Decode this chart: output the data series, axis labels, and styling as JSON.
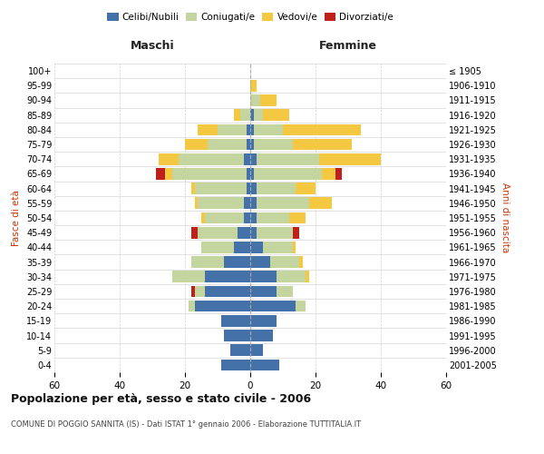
{
  "age_groups": [
    "0-4",
    "5-9",
    "10-14",
    "15-19",
    "20-24",
    "25-29",
    "30-34",
    "35-39",
    "40-44",
    "45-49",
    "50-54",
    "55-59",
    "60-64",
    "65-69",
    "70-74",
    "75-79",
    "80-84",
    "85-89",
    "90-94",
    "95-99",
    "100+"
  ],
  "birth_years": [
    "2001-2005",
    "1996-2000",
    "1991-1995",
    "1986-1990",
    "1981-1985",
    "1976-1980",
    "1971-1975",
    "1966-1970",
    "1961-1965",
    "1956-1960",
    "1951-1955",
    "1946-1950",
    "1941-1945",
    "1936-1940",
    "1931-1935",
    "1926-1930",
    "1921-1925",
    "1916-1920",
    "1911-1915",
    "1906-1910",
    "≤ 1905"
  ],
  "males": {
    "celibi": [
      9,
      6,
      8,
      9,
      17,
      14,
      14,
      8,
      5,
      4,
      2,
      2,
      1,
      1,
      2,
      1,
      1,
      0,
      0,
      0,
      0
    ],
    "coniugati": [
      0,
      0,
      0,
      0,
      2,
      3,
      10,
      10,
      10,
      12,
      12,
      14,
      16,
      23,
      20,
      12,
      9,
      3,
      0,
      0,
      0
    ],
    "vedovi": [
      0,
      0,
      0,
      0,
      0,
      0,
      0,
      0,
      0,
      0,
      1,
      1,
      1,
      2,
      6,
      7,
      6,
      2,
      0,
      0,
      0
    ],
    "divorziati": [
      0,
      0,
      0,
      0,
      0,
      1,
      0,
      0,
      0,
      2,
      0,
      0,
      0,
      3,
      0,
      0,
      0,
      0,
      0,
      0,
      0
    ]
  },
  "females": {
    "nubili": [
      9,
      4,
      7,
      8,
      14,
      8,
      8,
      6,
      4,
      2,
      2,
      2,
      2,
      1,
      2,
      1,
      1,
      1,
      0,
      0,
      0
    ],
    "coniugate": [
      0,
      0,
      0,
      0,
      3,
      5,
      9,
      9,
      9,
      11,
      10,
      16,
      12,
      21,
      19,
      12,
      9,
      3,
      3,
      0,
      0
    ],
    "vedove": [
      0,
      0,
      0,
      0,
      0,
      0,
      1,
      1,
      1,
      0,
      5,
      7,
      6,
      4,
      19,
      18,
      24,
      8,
      5,
      2,
      0
    ],
    "divorziate": [
      0,
      0,
      0,
      0,
      0,
      0,
      0,
      0,
      0,
      2,
      0,
      0,
      0,
      2,
      0,
      0,
      0,
      0,
      0,
      0,
      0
    ]
  },
  "colors": {
    "celibi": "#4472a8",
    "coniugati": "#c5d5a0",
    "vedovi": "#f5c842",
    "divorziati": "#c0201a"
  },
  "title": "Popolazione per età, sesso e stato civile - 2006",
  "subtitle": "COMUNE DI POGGIO SANNITA (IS) - Dati ISTAT 1° gennaio 2006 - Elaborazione TUTTITALIA.IT",
  "xlabel_left": "Maschi",
  "xlabel_right": "Femmine",
  "ylabel_left": "Fasce di età",
  "ylabel_right": "Anni di nascita",
  "xlim": 60,
  "background_color": "#ffffff",
  "grid_color": "#cccccc"
}
